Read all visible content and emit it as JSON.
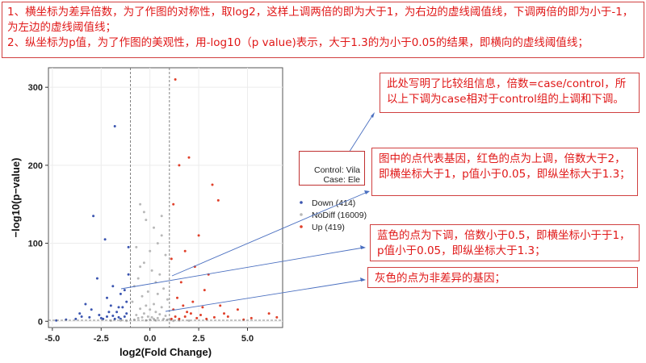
{
  "notes": {
    "top": "1、横坐标为差异倍数，为了作图的对称性，取log2，这样上调两倍的即为大于1，为右边的虚线阈值线，下调两倍的即为小于-1，为左边的虚线阈值线；\n2、纵坐标为p值，为了作图的美观性，用-log10（p value)表示，大于1.3的为小于0.05的结果，即横向的虚线阈值线；",
    "comparison": "此处写明了比较组信息，倍数=case/control，所以上下调为case相对于control组的上调和下调。",
    "red_points": "图中的点代表基因，红色的点为上调，倍数大于2，即横坐标大于1，p值小于0.05，即纵坐标大于1.3；",
    "blue_points": "蓝色的点为下调，倍数小于0.5，即横坐标小于于1，p值小于0.05，即纵坐标大于1.3；",
    "gray_points": "灰色的点为非差异的基因；"
  },
  "groups": {
    "control_label": "Control:",
    "control_value": "Vila",
    "case_label": "Case:",
    "case_value": "Ele"
  },
  "chart_data": {
    "type": "scatter",
    "title": "",
    "xlabel": "log2(Fold Change)",
    "ylabel": "−log10(p−value)",
    "xlim": [
      -5.2,
      6.8
    ],
    "ylim": [
      -8,
      325
    ],
    "xticks": [
      -5.0,
      -2.5,
      0.0,
      2.5,
      5.0
    ],
    "yticks": [
      0,
      100,
      200,
      300
    ],
    "grid": true,
    "thresholds": {
      "x": [
        -1,
        1
      ],
      "y": 1.3
    },
    "legend_position": "right",
    "series": [
      {
        "name": "Down (414)",
        "color": "#3b55b0",
        "points": [
          [
            -1.8,
            250
          ],
          [
            -2.9,
            135
          ],
          [
            -2.3,
            105
          ],
          [
            -1.9,
            45
          ],
          [
            -2.2,
            30
          ],
          [
            -3.0,
            15
          ],
          [
            -3.6,
            10
          ],
          [
            -1.5,
            35
          ],
          [
            -2.0,
            20
          ],
          [
            -1.3,
            40
          ],
          [
            -1.7,
            12
          ],
          [
            -2.6,
            8
          ],
          [
            -3.1,
            5
          ],
          [
            -1.2,
            25
          ],
          [
            -1.6,
            5
          ],
          [
            -4.3,
            2
          ],
          [
            -2.4,
            3
          ],
          [
            -1.4,
            18
          ],
          [
            -3.3,
            22
          ],
          [
            -1.1,
            60
          ],
          [
            -2.7,
            55
          ],
          [
            -2.1,
            12
          ],
          [
            -1.9,
            7
          ],
          [
            -3.8,
            3
          ],
          [
            -1.2,
            10
          ],
          [
            -2.5,
            4
          ],
          [
            -1.5,
            3
          ],
          [
            -1.3,
            6
          ],
          [
            -2.2,
            6
          ],
          [
            -3.5,
            6
          ],
          [
            -1.8,
            3
          ],
          [
            -4.8,
            1
          ],
          [
            -1.1,
            95
          ],
          [
            -1.6,
            18
          ]
        ]
      },
      {
        "name": "NoDiff (16009)",
        "color": "#b8b8b8",
        "points": [
          [
            -0.5,
            150
          ],
          [
            -0.2,
            130
          ],
          [
            0.2,
            120
          ],
          [
            0.6,
            110
          ],
          [
            -0.7,
            95
          ],
          [
            0.8,
            85
          ],
          [
            -0.3,
            75
          ],
          [
            0.1,
            65
          ],
          [
            0.5,
            60
          ],
          [
            -0.6,
            55
          ],
          [
            0.3,
            50
          ],
          [
            -0.8,
            45
          ],
          [
            0.7,
            42
          ],
          [
            -0.1,
            38
          ],
          [
            0.4,
            35
          ],
          [
            -0.4,
            32
          ],
          [
            0.9,
            28
          ],
          [
            -0.9,
            25
          ],
          [
            0.2,
            22
          ],
          [
            -0.2,
            20
          ],
          [
            0.6,
            18
          ],
          [
            -0.5,
            16
          ],
          [
            0.0,
            15
          ],
          [
            0.3,
            12
          ],
          [
            -0.3,
            10
          ],
          [
            0.5,
            9
          ],
          [
            -0.7,
            8
          ],
          [
            0.8,
            7
          ],
          [
            -0.1,
            6
          ],
          [
            0.1,
            5
          ],
          [
            -0.4,
            5
          ],
          [
            0.4,
            4
          ],
          [
            -0.6,
            4
          ],
          [
            0.2,
            3
          ],
          [
            0.7,
            3
          ],
          [
            -0.8,
            2
          ],
          [
            0.0,
            2
          ],
          [
            0.9,
            2
          ],
          [
            -0.2,
            1
          ],
          [
            0.3,
            1
          ],
          [
            -1.5,
            1
          ],
          [
            1.5,
            1
          ],
          [
            -2.0,
            0.8
          ],
          [
            2.0,
            0.8
          ],
          [
            -1.2,
            0.5
          ],
          [
            1.2,
            0.5
          ],
          [
            -0.5,
            70
          ],
          [
            0.4,
            100
          ],
          [
            0.0,
            90
          ],
          [
            -0.3,
            140
          ],
          [
            0.6,
            135
          ]
        ]
      },
      {
        "name": "Up (419)",
        "color": "#e0402a",
        "points": [
          [
            1.3,
            310
          ],
          [
            2.0,
            210
          ],
          [
            1.5,
            200
          ],
          [
            3.2,
            175
          ],
          [
            3.5,
            155
          ],
          [
            2.5,
            110
          ],
          [
            1.2,
            150
          ],
          [
            1.8,
            90
          ],
          [
            2.3,
            70
          ],
          [
            3.0,
            60
          ],
          [
            1.6,
            50
          ],
          [
            2.8,
            40
          ],
          [
            1.4,
            30
          ],
          [
            2.2,
            25
          ],
          [
            3.6,
            20
          ],
          [
            4.5,
            15
          ],
          [
            1.9,
            12
          ],
          [
            2.6,
            8
          ],
          [
            3.3,
            5
          ],
          [
            5.2,
            4
          ],
          [
            6.1,
            10
          ],
          [
            6.5,
            5
          ],
          [
            1.1,
            80
          ],
          [
            1.7,
            20
          ],
          [
            2.1,
            10
          ],
          [
            1.3,
            6
          ],
          [
            2.9,
            3
          ],
          [
            4.0,
            6
          ],
          [
            1.5,
            3
          ],
          [
            3.8,
            10
          ],
          [
            1.2,
            15
          ],
          [
            2.4,
            4
          ],
          [
            1.8,
            6
          ],
          [
            1.1,
            3
          ],
          [
            4.8,
            2
          ],
          [
            2.7,
            18
          ]
        ]
      }
    ]
  }
}
